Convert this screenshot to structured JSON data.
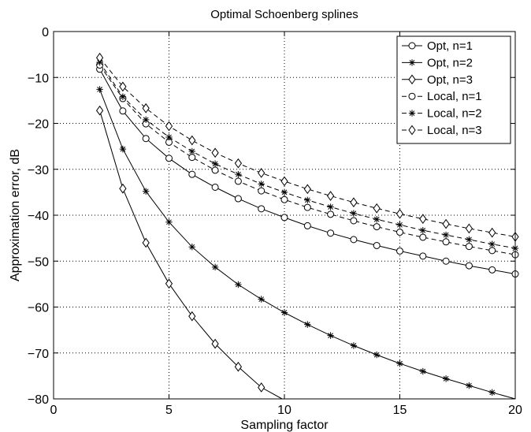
{
  "chart_data": {
    "type": "line",
    "title": "Optimal Schoenberg splines",
    "xlabel": "Sampling factor",
    "ylabel": "Approximation error, dB",
    "xlim": [
      0,
      20
    ],
    "ylim": [
      -80,
      0
    ],
    "xticks": [
      "0",
      "5",
      "10",
      "15",
      "20"
    ],
    "yticks": [
      "0",
      "−10",
      "−20",
      "−30",
      "−40",
      "−50",
      "−60",
      "−70",
      "−80"
    ],
    "grid": true,
    "legend_position": "top-right",
    "series": [
      {
        "name": "Opt, n=1",
        "line": "solid",
        "marker": "circle",
        "x": [
          2,
          3,
          4,
          5,
          6,
          7,
          8,
          9,
          10,
          11,
          12,
          13,
          14,
          15,
          16,
          17,
          18,
          19,
          20
        ],
        "y": [
          -8.2,
          -17.3,
          -23.3,
          -27.6,
          -31.1,
          -33.9,
          -36.4,
          -38.6,
          -40.5,
          -42.3,
          -43.9,
          -45.3,
          -46.6,
          -47.8,
          -48.9,
          -50.0,
          -51.0,
          -51.9,
          -52.8
        ]
      },
      {
        "name": "Opt, n=2",
        "line": "solid",
        "marker": "star",
        "x": [
          2,
          3,
          4,
          5,
          6,
          7,
          8,
          9,
          10,
          11,
          12,
          13,
          14,
          15,
          16,
          17,
          18,
          19,
          20
        ],
        "y": [
          -12.6,
          -25.6,
          -34.8,
          -41.5,
          -46.9,
          -51.3,
          -55.1,
          -58.3,
          -61.2,
          -63.8,
          -66.2,
          -68.4,
          -70.4,
          -72.3,
          -74.0,
          -75.6,
          -77.1,
          -78.6,
          -80.0
        ]
      },
      {
        "name": "Opt, n=3",
        "line": "solid",
        "marker": "diamond",
        "x": [
          2,
          3,
          4,
          5,
          6,
          7,
          8,
          9,
          9.9
        ],
        "y": [
          -17.2,
          -34.2,
          -46.0,
          -54.9,
          -62.0,
          -68.0,
          -73.0,
          -77.5,
          -80.0
        ]
      },
      {
        "name": "Local, n=1",
        "line": "dashed",
        "marker": "circle",
        "x": [
          2,
          3,
          4,
          5,
          6,
          7,
          8,
          9,
          10,
          11,
          12,
          13,
          14,
          15,
          16,
          17,
          18,
          19,
          20
        ],
        "y": [
          -7.3,
          -14.6,
          -20.1,
          -24.1,
          -27.4,
          -30.2,
          -32.6,
          -34.7,
          -36.6,
          -38.3,
          -39.8,
          -41.2,
          -42.5,
          -43.7,
          -44.8,
          -45.8,
          -46.8,
          -47.7,
          -48.6
        ]
      },
      {
        "name": "Local, n=2",
        "line": "dashed",
        "marker": "star",
        "x": [
          2,
          3,
          4,
          5,
          6,
          7,
          8,
          9,
          10,
          11,
          12,
          13,
          14,
          15,
          16,
          17,
          18,
          19,
          20
        ],
        "y": [
          -6.7,
          -14.2,
          -19.2,
          -23.0,
          -26.1,
          -28.8,
          -31.1,
          -33.2,
          -35.0,
          -36.7,
          -38.2,
          -39.6,
          -40.9,
          -42.1,
          -43.3,
          -44.3,
          -45.3,
          -46.3,
          -47.2
        ]
      },
      {
        "name": "Local, n=3",
        "line": "dashed",
        "marker": "diamond",
        "x": [
          2,
          3,
          4,
          5,
          6,
          7,
          8,
          9,
          10,
          11,
          12,
          13,
          14,
          15,
          16,
          17,
          18,
          19,
          20
        ],
        "y": [
          -5.7,
          -12.0,
          -16.7,
          -20.6,
          -23.7,
          -26.4,
          -28.7,
          -30.8,
          -32.6,
          -34.3,
          -35.8,
          -37.2,
          -38.5,
          -39.7,
          -40.8,
          -41.9,
          -42.9,
          -43.8,
          -44.7
        ]
      }
    ]
  }
}
